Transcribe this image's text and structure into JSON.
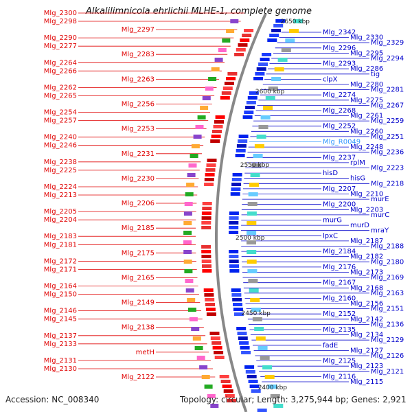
{
  "title": "Alkalilimnicola ehrlichii MLHE-1, complete genome",
  "footer": {
    "accession": "Accession: NC_008340",
    "topology": "Topology: circular; Length: 3,275,944 bp; Genes: 2,921"
  },
  "colors": {
    "left_labels": "#e00000",
    "right_labels": "#0000cc",
    "highlight_label": "#3399ff",
    "forward_strand": "#ff0000",
    "reverse_strand": "#0022ee",
    "backbone": "#888888",
    "ticks": "#1a8f1a"
  },
  "scale_ticks": [
    "2650 kbp",
    "2600 kbp",
    "2550 kbp",
    "2500 kbp",
    "2450 kbp",
    "2400 kbp"
  ],
  "left_genes": [
    "Mlg_2300",
    "Mlg_2298",
    "Mlg_2297",
    "Mlg_2290",
    "Mlg_2277",
    "Mlg_2283",
    "Mlg_2264",
    "Mlg_2266",
    "Mlg_2263",
    "Mlg_2262",
    "Mlg_2265",
    "Mlg_2256",
    "Mlg_2254",
    "Mlg_2257",
    "Mlg_2253",
    "Mlg_2240",
    "Mlg_2246",
    "Mlg_2231",
    "Mlg_2238",
    "Mlg_2225",
    "Mlg_2230",
    "Mlg_2224",
    "Mlg_2213",
    "Mlg_2206",
    "Mlg_2205",
    "Mlg_2204",
    "Mlg_2185",
    "Mlg_2183",
    "Mlg_2181",
    "Mlg_2175",
    "Mlg_2172",
    "Mlg_2171",
    "Mlg_2165",
    "Mlg_2164",
    "Mlg_2150",
    "Mlg_2149",
    "Mlg_2146",
    "Mlg_2145",
    "Mlg_2138",
    "Mlg_2137",
    "Mlg_2133",
    "metH",
    "Mlg_2131",
    "Mlg_2130",
    "Mlg_2122"
  ],
  "right_genes": [
    "Mlg_2342",
    "Mlg_2330",
    "Mlg_2329",
    "Mlg_2296",
    "Mlg_2295",
    "Mlg_2294",
    "Mlg_2293",
    "Mlg_2286",
    "tig",
    "clpX",
    "Mlg_2280",
    "Mlg_2281",
    "Mlg_2274",
    "Mlg_2275",
    "Mlg_2267",
    "Mlg_2268",
    "Mlg_2261",
    "Mlg_2259",
    "Mlg_2252",
    "Mlg_2260",
    "Mlg_2251",
    "Mlg_R0049",
    "Mlg_2248",
    "Mlg_2236",
    "Mlg_2237",
    "rplM",
    "Mlg_2223",
    "hisD",
    "hisG",
    "Mlg_2218",
    "Mlg_2207",
    "Mlg_2210",
    "murE",
    "Mlg_2200",
    "Mlg_2203",
    "murC",
    "murG",
    "murD",
    "mraY",
    "lpxC",
    "Mlg_2187",
    "Mlg_2188",
    "Mlg_2184",
    "Mlg_2182",
    "Mlg_2180",
    "Mlg_2176",
    "Mlg_2173",
    "Mlg_2169",
    "Mlg_2167",
    "Mlg_2168",
    "Mlg_2163",
    "Mlg_2160",
    "Mlg_2156",
    "Mlg_2151",
    "Mlg_2152",
    "Mlg_2142",
    "Mlg_2136",
    "Mlg_2135",
    "Mlg_2134",
    "Mlg_2129",
    "fadE",
    "Mlg_2127",
    "Mlg_2126",
    "Mlg_2125",
    "Mlg_2123",
    "Mlg_2121",
    "Mlg_2116",
    "Mlg_2115"
  ]
}
